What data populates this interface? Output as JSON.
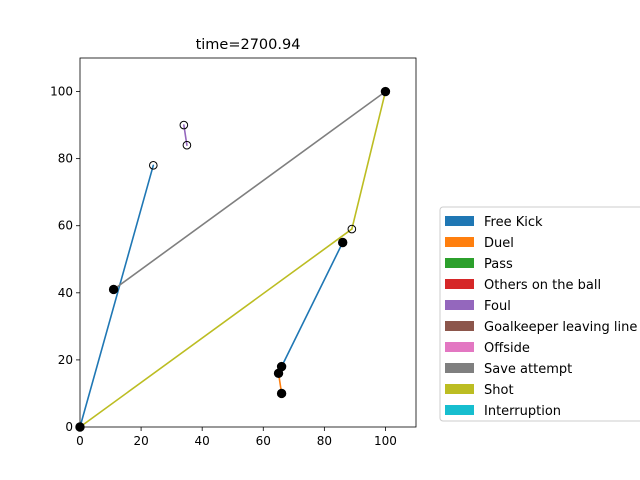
{
  "chart_data": {
    "type": "line",
    "title": "time=2700.94",
    "xlabel": "",
    "ylabel": "",
    "xlim": [
      0,
      110
    ],
    "ylim": [
      0,
      110
    ],
    "x_ticks": [
      0,
      20,
      40,
      60,
      80,
      100
    ],
    "y_ticks": [
      0,
      20,
      40,
      60,
      80,
      100
    ],
    "grid": false,
    "legend_position": "right",
    "legend": [
      {
        "name": "Free Kick",
        "color": "#1f77b4"
      },
      {
        "name": "Duel",
        "color": "#ff7f0e"
      },
      {
        "name": "Pass",
        "color": "#2ca02c"
      },
      {
        "name": "Others on the ball",
        "color": "#d62728"
      },
      {
        "name": "Foul",
        "color": "#9467bd"
      },
      {
        "name": "Goalkeeper leaving line",
        "color": "#8c564b"
      },
      {
        "name": "Offside",
        "color": "#e377c2"
      },
      {
        "name": "Save attempt",
        "color": "#7f7f7f"
      },
      {
        "name": "Shot",
        "color": "#bcbd22"
      },
      {
        "name": "Interruption",
        "color": "#17becf"
      }
    ],
    "segments": [
      {
        "event": "Free Kick",
        "color": "#1f77b4",
        "from": [
          24,
          78
        ],
        "to": [
          0,
          0
        ]
      },
      {
        "event": "Free Kick",
        "color": "#1f77b4",
        "from": [
          86,
          55
        ],
        "to": [
          66,
          18
        ]
      },
      {
        "event": "Duel",
        "color": "#ff7f0e",
        "from": [
          65,
          16
        ],
        "to": [
          66,
          10
        ]
      },
      {
        "event": "Foul",
        "color": "#9467bd",
        "from": [
          34,
          90
        ],
        "to": [
          35,
          84
        ]
      },
      {
        "event": "Save attempt",
        "color": "#7f7f7f",
        "from": [
          11,
          41
        ],
        "to": [
          100,
          100
        ]
      },
      {
        "event": "Shot",
        "color": "#bcbd22",
        "from": [
          0,
          0
        ],
        "to": [
          89,
          59
        ]
      },
      {
        "event": "Shot",
        "color": "#bcbd22",
        "from": [
          89,
          59
        ],
        "to": [
          100,
          100
        ]
      }
    ],
    "points": [
      {
        "x": 24,
        "y": 78,
        "filled": false
      },
      {
        "x": 34,
        "y": 90,
        "filled": false
      },
      {
        "x": 35,
        "y": 84,
        "filled": false
      },
      {
        "x": 89,
        "y": 59,
        "filled": false
      },
      {
        "x": 100,
        "y": 100,
        "filled": true
      },
      {
        "x": 11,
        "y": 41,
        "filled": true
      },
      {
        "x": 86,
        "y": 55,
        "filled": true
      },
      {
        "x": 66,
        "y": 18,
        "filled": true
      },
      {
        "x": 65,
        "y": 16,
        "filled": true
      },
      {
        "x": 66,
        "y": 10,
        "filled": true
      },
      {
        "x": 0,
        "y": 0,
        "filled": true
      }
    ]
  }
}
